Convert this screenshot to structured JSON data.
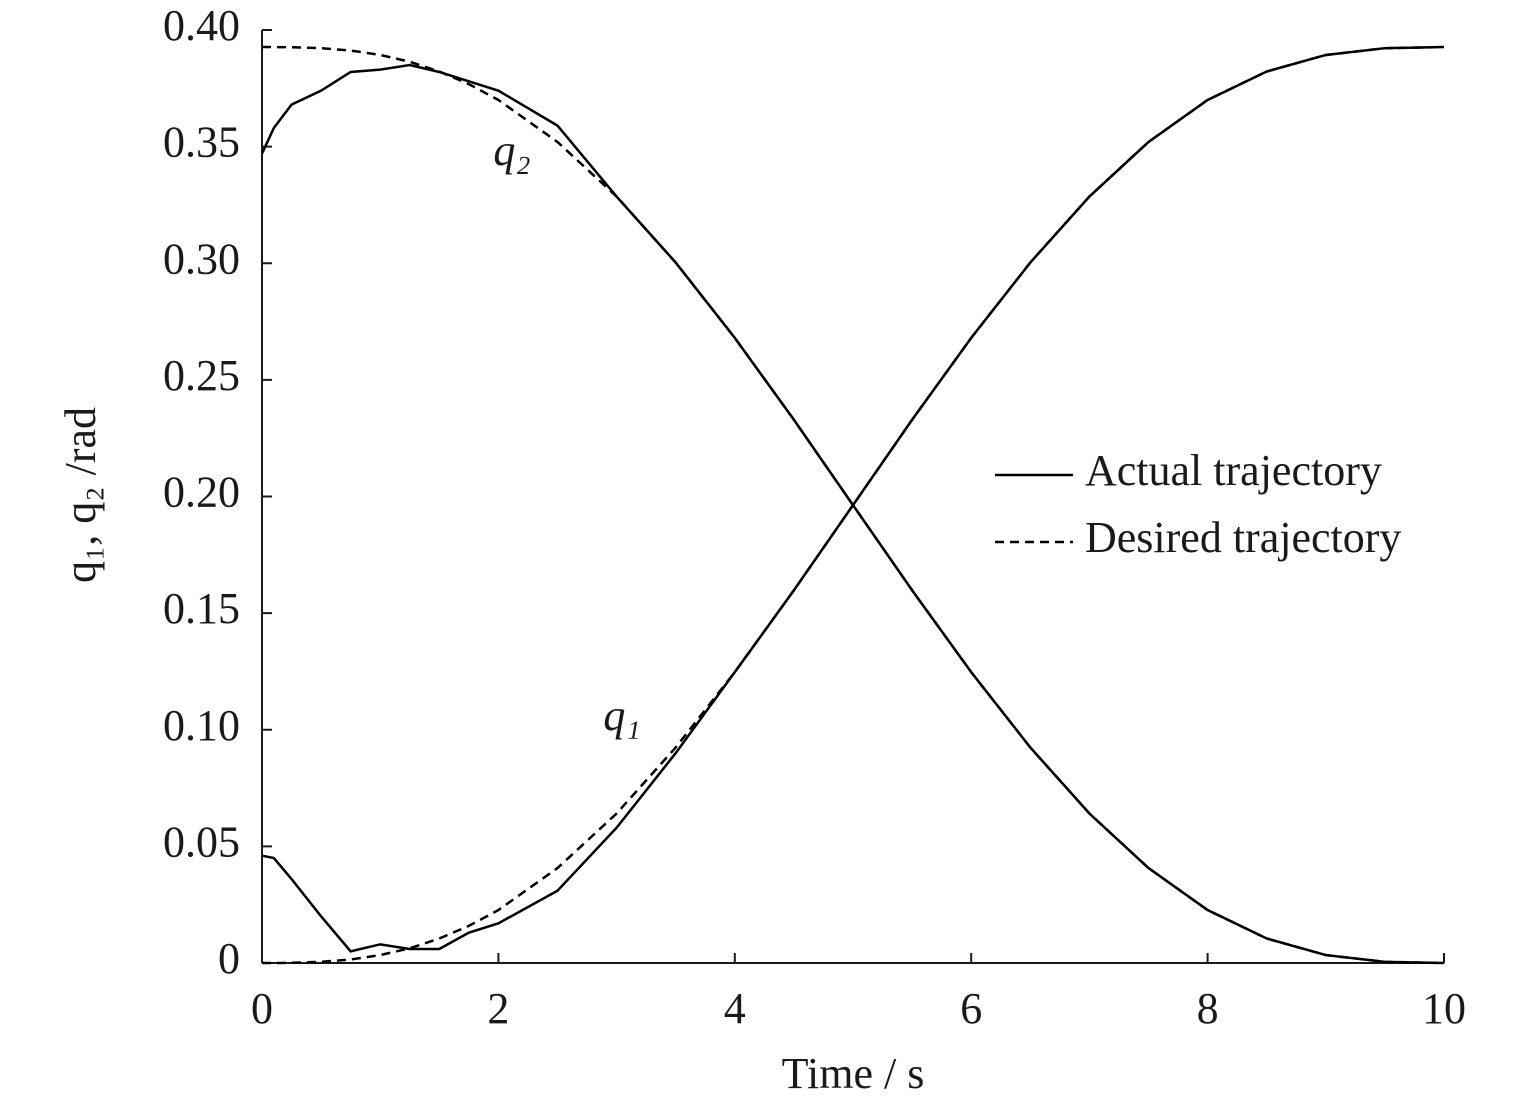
{
  "chart_data": {
    "type": "line",
    "x_label": "Time / s",
    "y_label": "q₁, q₂ /rad",
    "annotations": [
      "q₂",
      "q₁"
    ],
    "x": [
      0,
      0.1,
      0.25,
      0.5,
      0.75,
      1,
      1.25,
      1.5,
      1.75,
      2,
      2.5,
      3,
      3.5,
      4,
      4.5,
      5,
      5.5,
      6,
      6.5,
      7,
      7.5,
      8,
      8.5,
      9,
      9.5,
      10
    ],
    "series": [
      {
        "name": "Actual trajectory",
        "color": "#000000",
        "dashed": false,
        "values": [
          0.046,
          0.045,
          0.036,
          0.02,
          0.005,
          0.008,
          0.006,
          0.006,
          0.013,
          0.017,
          0.031,
          0.058,
          0.09,
          0.1247,
          0.1598,
          0.1963,
          0.2329,
          0.268,
          0.3003,
          0.3286,
          0.352,
          0.37,
          0.3822,
          0.3893,
          0.3922,
          0.3927
        ]
      },
      {
        "name": "Desired trajectory",
        "color": "#000000",
        "dashed": true,
        "values": [
          0,
          0,
          0.0001,
          0.0005,
          0.0015,
          0.0034,
          0.0063,
          0.0105,
          0.0159,
          0.0227,
          0.0407,
          0.0641,
          0.0924,
          0.1247,
          0.1598,
          0.1963,
          0.2329,
          0.268,
          0.3003,
          0.3286,
          0.352,
          0.37,
          0.3822,
          0.3893,
          0.3922,
          0.3927
        ]
      },
      {
        "name": "Actual trajectory",
        "color": "#000000",
        "dashed": false,
        "values": [
          0.347,
          0.358,
          0.368,
          0.374,
          0.382,
          0.383,
          0.385,
          0.382,
          0.378,
          0.374,
          0.359,
          0.3286,
          0.3003,
          0.268,
          0.2329,
          0.1963,
          0.1598,
          0.1247,
          0.0924,
          0.0641,
          0.0407,
          0.0227,
          0.0105,
          0.0034,
          0.0005,
          0
        ]
      },
      {
        "name": "Desired trajectory",
        "color": "#000000",
        "dashed": true,
        "values": [
          0.3927,
          0.3927,
          0.3926,
          0.3922,
          0.3912,
          0.3893,
          0.3864,
          0.3822,
          0.3768,
          0.37,
          0.352,
          0.3286,
          0.3003,
          0.268,
          0.2329,
          0.1963,
          0.1598,
          0.1247,
          0.0924,
          0.0641,
          0.0407,
          0.0227,
          0.0105,
          0.0034,
          0.0005,
          0
        ]
      }
    ],
    "xlim": [
      0,
      10
    ],
    "xticks": [
      0,
      2,
      4,
      6,
      8,
      10
    ],
    "ylim": [
      0,
      0.4
    ],
    "yticks": [
      0,
      0.05,
      {
        "value": 0.1,
        "label": "0.10"
      },
      0.15,
      {
        "value": 0.2,
        "label": "0.20"
      },
      0.25,
      {
        "value": 0.3,
        "label": "0.30"
      },
      0.35,
      {
        "value": 0.4,
        "label": "0.40"
      }
    ],
    "legend": "right"
  }
}
